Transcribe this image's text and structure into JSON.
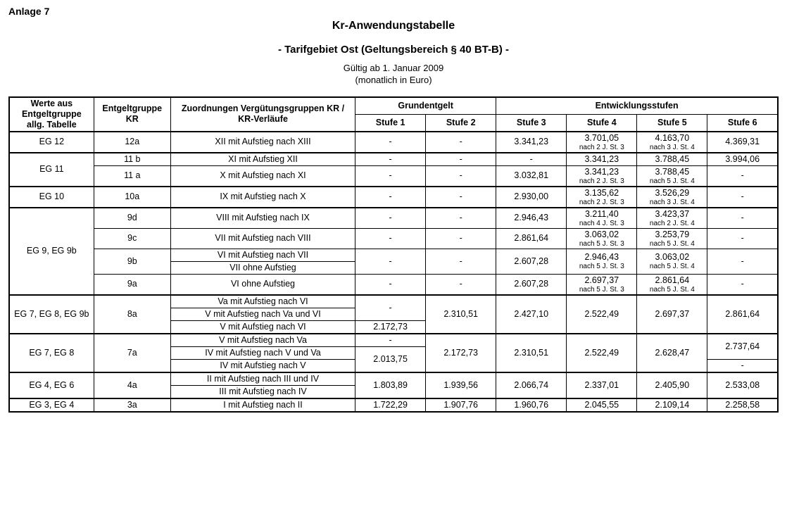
{
  "header": {
    "anlage": "Anlage 7",
    "title1": "Kr-Anwendungstabelle",
    "title2": "- Tarifgebiet Ost (Geltungsbereich § 40 BT-B) -",
    "valid": "Gültig ab 1. Januar 2009",
    "unit": "(monatlich in Euro)"
  },
  "thead": {
    "c1": "Werte aus Entgeltgruppe allg. Tabelle",
    "c2": "Entgeltgruppe KR",
    "c3": "Zuordnungen Vergütungsgruppen KR /  KR-Verläufe",
    "grund": "Grundentgelt",
    "entw": "Entwicklungsstufen",
    "s1": "Stufe 1",
    "s2": "Stufe 2",
    "s3": "Stufe 3",
    "s4": "Stufe 4",
    "s5": "Stufe 5",
    "s6": "Stufe 6"
  },
  "rows": {
    "r12a": {
      "eg": "EG 12",
      "kr": "12a",
      "z": "XII mit Aufstieg nach XIII",
      "s1": "-",
      "s2": "-",
      "s3": "3.341,23",
      "s4": "3.701,05",
      "s4n": "nach 2 J. St. 3",
      "s5": "4.163,70",
      "s5n": "nach 3 J. St. 4",
      "s6": "4.369,31"
    },
    "r11b": {
      "eg": "EG 11",
      "kr": "11 b",
      "z": "XI mit Aufstieg  XII",
      "s1": "-",
      "s2": "-",
      "s3": "-",
      "s4": "3.341,23",
      "s5": "3.788,45",
      "s6": "3.994,06"
    },
    "r11a": {
      "kr": "11 a",
      "z": "X mit Aufstieg nach XI",
      "s1": "-",
      "s2": "-",
      "s3": "3.032,81",
      "s4": "3.341,23",
      "s4n": "nach 2 J. St. 3",
      "s5": "3.788,45",
      "s5n": "nach 5 J. St. 4",
      "s6": "-"
    },
    "r10a": {
      "eg": "EG 10",
      "kr": "10a",
      "z": "IX mit Aufstieg nach  X",
      "s1": "-",
      "s2": "-",
      "s3": "2.930,00",
      "s4": "3.135,62",
      "s4n": "nach 2 J. St. 3",
      "s5": "3.526,29",
      "s5n": "nach 3 J. St. 4",
      "s6": "-"
    },
    "r9d": {
      "eg": "EG 9, EG 9b",
      "kr": "9d",
      "z": "VIII mit Aufstieg nach IX",
      "s1": "-",
      "s2": "-",
      "s3": "2.946,43",
      "s4": "3.211,40",
      "s4n": "nach 4 J. St. 3",
      "s5": "3.423,37",
      "s5n": "nach 2 J. St. 4",
      "s6": "-"
    },
    "r9c": {
      "kr": "9c",
      "z": "VII mit Aufstieg nach VIII",
      "s1": "-",
      "s2": "-",
      "s3": "2.861,64",
      "s4": "3.063,02",
      "s4n": "nach 5 J. St. 3",
      "s5": "3.253,79",
      "s5n": "nach 5 J. St. 4",
      "s6": "-"
    },
    "r9b": {
      "kr": "9b",
      "z1": "VI mit Aufstieg nach VII",
      "z2": "VII ohne Aufstieg",
      "s1": "-",
      "s2": "-",
      "s3": "2.607,28",
      "s4": "2.946,43",
      "s4n": "nach 5 J. St. 3",
      "s5": "3.063,02",
      "s5n": "nach 5 J. St. 4",
      "s6": "-"
    },
    "r9a": {
      "kr": "9a",
      "z": "VI ohne Aufstieg",
      "s1": "-",
      "s2": "-",
      "s3": "2.607,28",
      "s4": "2.697,37",
      "s4n": "nach 5 J. St. 3",
      "s5": "2.861,64",
      "s5n": "nach 5 J. St. 4",
      "s6": "-"
    },
    "r8a": {
      "eg": "EG 7, EG 8, EG 9b",
      "kr": "8a",
      "z1": "Va mit Aufstieg nach VI",
      "z2": "V mit Aufstieg nach Va und VI",
      "z3": "V mit Aufstieg nach VI",
      "s1a": "-",
      "s1b": "2.172,73",
      "s2": "2.310,51",
      "s3": "2.427,10",
      "s4": "2.522,49",
      "s5": "2.697,37",
      "s6": "2.861,64"
    },
    "r7a": {
      "eg": "EG 7, EG 8",
      "kr": "7a",
      "z1": "V mit Aufstieg nach Va",
      "z2": "IV mit Aufstieg nach V und Va",
      "z3": "IV mit Aufstieg nach V",
      "s1a": "-",
      "s1b": "2.013,75",
      "s2": "2.172,73",
      "s3": "2.310,51",
      "s4": "2.522,49",
      "s5": "2.628,47",
      "s6a": "2.737,64",
      "s6b": "-"
    },
    "r4a": {
      "eg": "EG 4, EG 6",
      "kr": "4a",
      "z1": "II mit Aufstieg nach III und IV",
      "z2": "III mit Aufstieg nach IV",
      "s1": "1.803,89",
      "s2": "1.939,56",
      "s3": "2.066,74",
      "s4": "2.337,01",
      "s5": "2.405,90",
      "s6": "2.533,08"
    },
    "r3a": {
      "eg": "EG 3, EG 4",
      "kr": "3a",
      "z": "I mit Aufstieg nach II",
      "s1": "1.722,29",
      "s2": "1.907,76",
      "s3": "1.960,76",
      "s4": "2.045,55",
      "s5": "2.109,14",
      "s6": "2.258,58"
    }
  }
}
